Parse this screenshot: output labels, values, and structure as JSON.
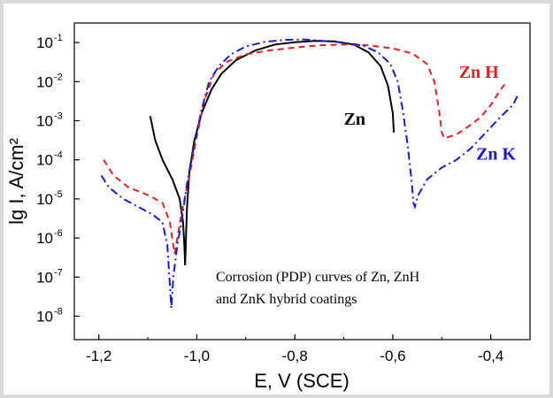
{
  "chart_data": {
    "type": "line",
    "title": "",
    "xlabel": "E, V (SCE)",
    "ylabel": "lg I, A/cm²",
    "xlim": [
      -1.25,
      -0.32
    ],
    "ylim_log10": [
      -8.6,
      -0.5
    ],
    "y_scale": "log",
    "grid": false,
    "x_ticks": [
      -1.2,
      -1.0,
      -0.8,
      -0.6,
      -0.4
    ],
    "x_tick_labels": [
      "-1,2",
      "-1,0",
      "-0,8",
      "-0,6",
      "-0,4"
    ],
    "y_ticks_exponents": [
      -1,
      -2,
      -3,
      -4,
      -5,
      -6,
      -7,
      -8
    ],
    "y_tick_base": "10",
    "annotation": {
      "line1": "Corrosion (PDP) curves of Zn, ZnH",
      "line2": "and ZnK hybrid coatings"
    },
    "series": [
      {
        "name": "Zn",
        "color": "#000000",
        "style": "solid",
        "points": [
          [
            -1.095,
            -2.88
          ],
          [
            -1.085,
            -3.5
          ],
          [
            -1.07,
            -4.0
          ],
          [
            -1.05,
            -4.5
          ],
          [
            -1.035,
            -5.0
          ],
          [
            -1.028,
            -5.6
          ],
          [
            -1.025,
            -6.3
          ],
          [
            -1.024,
            -6.7
          ],
          [
            -1.022,
            -5.9
          ],
          [
            -1.02,
            -5.2
          ],
          [
            -1.015,
            -4.3
          ],
          [
            -1.005,
            -3.5
          ],
          [
            -0.99,
            -2.8
          ],
          [
            -0.97,
            -2.2
          ],
          [
            -0.95,
            -1.8
          ],
          [
            -0.92,
            -1.45
          ],
          [
            -0.88,
            -1.2
          ],
          [
            -0.84,
            -1.05
          ],
          [
            -0.8,
            -0.99
          ],
          [
            -0.76,
            -0.96
          ],
          [
            -0.72,
            -0.97
          ],
          [
            -0.68,
            -1.05
          ],
          [
            -0.65,
            -1.25
          ],
          [
            -0.625,
            -1.6
          ],
          [
            -0.61,
            -2.1
          ],
          [
            -0.6,
            -2.8
          ],
          [
            -0.598,
            -3.3
          ]
        ]
      },
      {
        "name": "Zn H",
        "color": "#e02020",
        "style": "dashed",
        "points": [
          [
            -1.19,
            -4.0
          ],
          [
            -1.17,
            -4.4
          ],
          [
            -1.14,
            -4.7
          ],
          [
            -1.1,
            -4.9
          ],
          [
            -1.07,
            -5.1
          ],
          [
            -1.055,
            -5.6
          ],
          [
            -1.048,
            -6.2
          ],
          [
            -1.045,
            -6.4
          ],
          [
            -1.04,
            -6.0
          ],
          [
            -1.03,
            -5.3
          ],
          [
            -1.015,
            -4.4
          ],
          [
            -1.0,
            -3.4
          ],
          [
            -0.985,
            -2.5
          ],
          [
            -0.965,
            -1.8
          ],
          [
            -0.94,
            -1.5
          ],
          [
            -0.9,
            -1.3
          ],
          [
            -0.85,
            -1.2
          ],
          [
            -0.8,
            -1.13
          ],
          [
            -0.75,
            -1.07
          ],
          [
            -0.7,
            -1.05
          ],
          [
            -0.65,
            -1.07
          ],
          [
            -0.6,
            -1.15
          ],
          [
            -0.56,
            -1.28
          ],
          [
            -0.53,
            -1.55
          ],
          [
            -0.515,
            -2.0
          ],
          [
            -0.505,
            -2.8
          ],
          [
            -0.5,
            -3.3
          ],
          [
            -0.495,
            -3.45
          ],
          [
            -0.47,
            -3.35
          ],
          [
            -0.44,
            -3.1
          ],
          [
            -0.42,
            -2.9
          ],
          [
            -0.4,
            -2.6
          ],
          [
            -0.38,
            -2.2
          ],
          [
            -0.37,
            -2.05
          ]
        ]
      },
      {
        "name": "Zn K",
        "color": "#1a1ad0",
        "style": "dashdot",
        "points": [
          [
            -1.195,
            -4.4
          ],
          [
            -1.18,
            -4.7
          ],
          [
            -1.15,
            -5.0
          ],
          [
            -1.12,
            -5.2
          ],
          [
            -1.09,
            -5.4
          ],
          [
            -1.07,
            -5.6
          ],
          [
            -1.06,
            -6.2
          ],
          [
            -1.055,
            -7.2
          ],
          [
            -1.052,
            -7.8
          ],
          [
            -1.048,
            -7.0
          ],
          [
            -1.04,
            -6.2
          ],
          [
            -1.03,
            -5.5
          ],
          [
            -1.02,
            -4.6
          ],
          [
            -1.005,
            -3.6
          ],
          [
            -0.99,
            -2.7
          ],
          [
            -0.975,
            -2.0
          ],
          [
            -0.955,
            -1.6
          ],
          [
            -0.93,
            -1.3
          ],
          [
            -0.9,
            -1.1
          ],
          [
            -0.86,
            -0.98
          ],
          [
            -0.82,
            -0.93
          ],
          [
            -0.78,
            -0.92
          ],
          [
            -0.75,
            -0.95
          ],
          [
            -0.7,
            -1.0
          ],
          [
            -0.66,
            -1.08
          ],
          [
            -0.63,
            -1.25
          ],
          [
            -0.605,
            -1.55
          ],
          [
            -0.59,
            -2.0
          ],
          [
            -0.58,
            -2.7
          ],
          [
            -0.57,
            -3.6
          ],
          [
            -0.562,
            -4.5
          ],
          [
            -0.558,
            -5.1
          ],
          [
            -0.555,
            -5.2
          ],
          [
            -0.548,
            -4.9
          ],
          [
            -0.53,
            -4.5
          ],
          [
            -0.5,
            -4.2
          ],
          [
            -0.47,
            -4.0
          ],
          [
            -0.44,
            -3.7
          ],
          [
            -0.41,
            -3.3
          ],
          [
            -0.38,
            -2.9
          ],
          [
            -0.355,
            -2.6
          ],
          [
            -0.345,
            -2.35
          ]
        ]
      }
    ],
    "series_labels": [
      {
        "text": "Zn",
        "color": "#000000",
        "x": -0.7,
        "y_log10": -3.1
      },
      {
        "text": "Zn H",
        "color": "#e02020",
        "x": -0.465,
        "y_log10": -1.9
      },
      {
        "text": "Zn K",
        "color": "#1a1ad0",
        "x": -0.43,
        "y_log10": -4.0
      }
    ]
  }
}
